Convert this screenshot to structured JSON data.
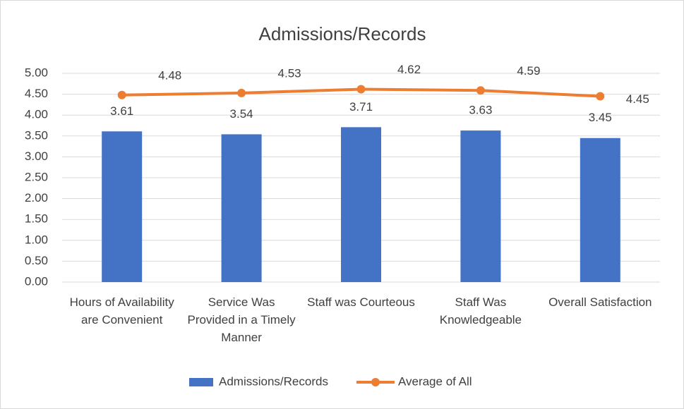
{
  "chart_data": {
    "type": "bar-line",
    "title": "Admissions/Records",
    "categories": [
      "Hours of Availability are Convenient",
      "Service Was Provided in a Timely Manner",
      "Staff was Courteous",
      "Staff Was Knowledgeable",
      "Overall Satisfaction"
    ],
    "series": [
      {
        "name": "Admissions/Records",
        "type": "bar",
        "color": "#4472c4",
        "values": [
          3.61,
          3.54,
          3.71,
          3.63,
          3.45
        ]
      },
      {
        "name": "Average of All",
        "type": "line",
        "color": "#ed7d31",
        "values": [
          4.48,
          4.53,
          4.62,
          4.59,
          4.45
        ]
      }
    ],
    "ylim": [
      0,
      5
    ],
    "yticks": [
      {
        "value": 0,
        "label": "0.00"
      },
      {
        "value": 0.5,
        "label": "0.50"
      },
      {
        "value": 1,
        "label": "1.00"
      },
      {
        "value": 1.5,
        "label": "1.50"
      },
      {
        "value": 2,
        "label": "2.00"
      },
      {
        "value": 2.5,
        "label": "2.50"
      },
      {
        "value": 3,
        "label": "3.00"
      },
      {
        "value": 3.5,
        "label": "3.50"
      },
      {
        "value": 4,
        "label": "4.00"
      },
      {
        "value": 4.5,
        "label": "4.50"
      },
      {
        "value": 5,
        "label": "5.00"
      }
    ],
    "grid": true,
    "legend": "bottom"
  }
}
